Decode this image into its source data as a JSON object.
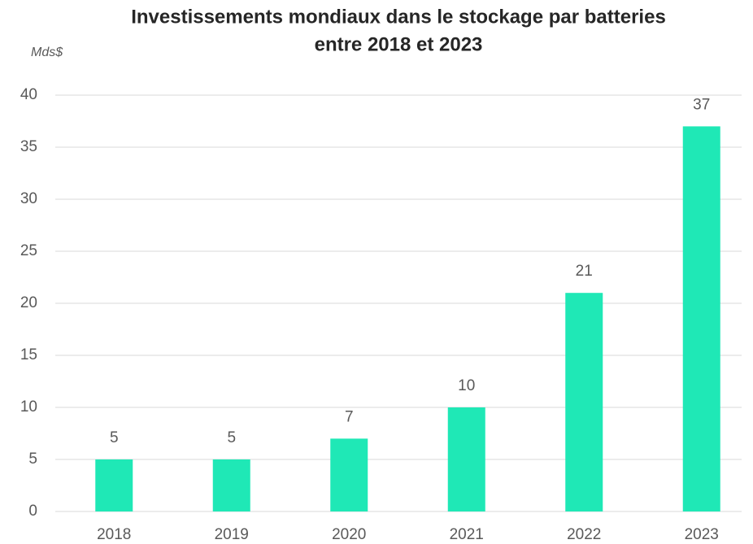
{
  "chart_data": {
    "type": "bar",
    "title": [
      "Investissements mondiaux dans le stockage par batteries",
      "entre 2018 et 2023"
    ],
    "y_label": "Mds$",
    "categories": [
      "2018",
      "2019",
      "2020",
      "2021",
      "2022",
      "2023"
    ],
    "values": [
      5,
      5,
      7,
      10,
      21,
      37
    ],
    "color": "#1fe8b6",
    "ylim": [
      0,
      40
    ],
    "yticks": [
      0,
      5,
      10,
      15,
      20,
      25,
      30,
      35,
      40
    ],
    "grid": true
  }
}
